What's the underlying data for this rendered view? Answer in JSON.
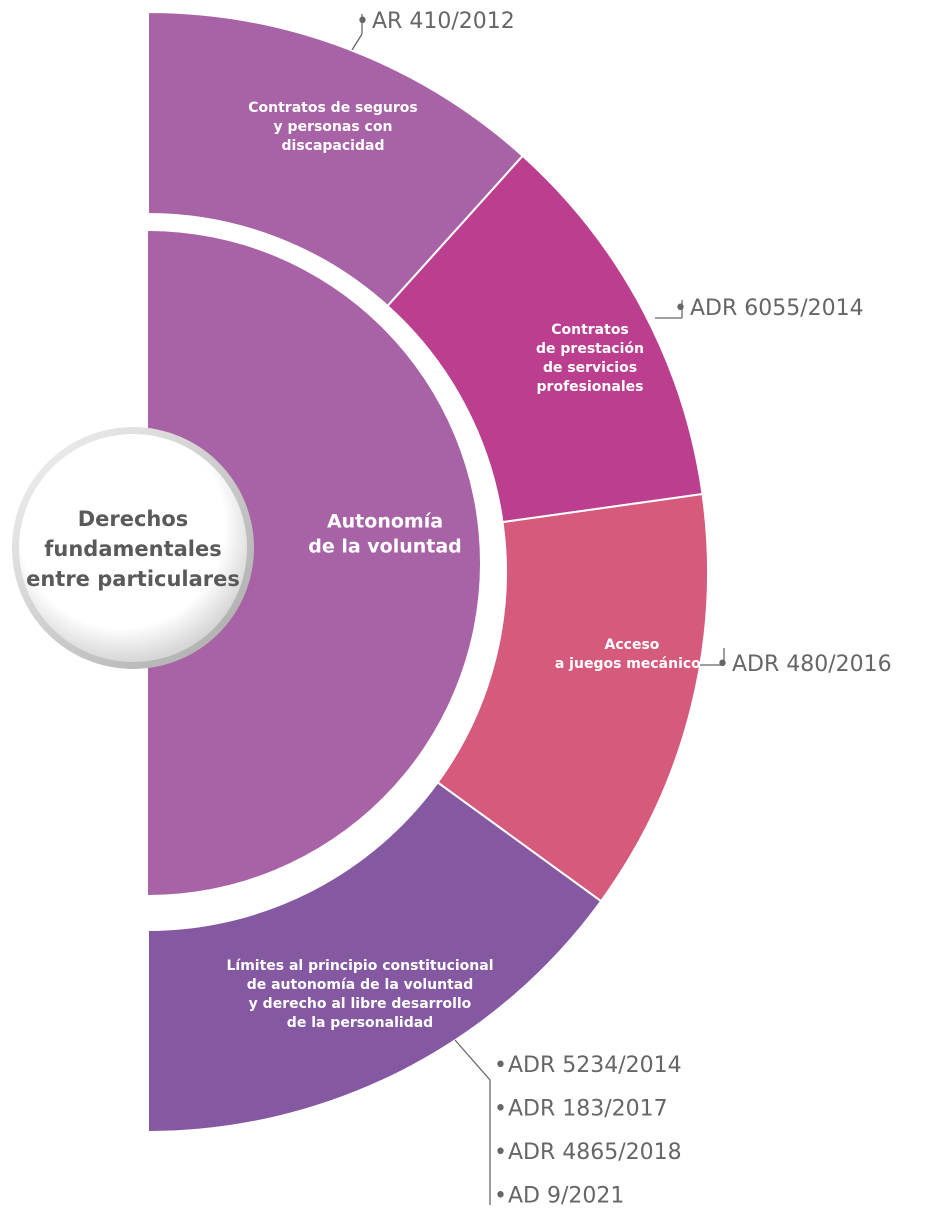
{
  "core": "Derechos fundamentales entre particulares",
  "core_lines": [
    "Derechos",
    "fundamentales",
    "entre particulares"
  ],
  "center_lines": [
    "Autonomía",
    "de la voluntad"
  ],
  "segments": [
    {
      "lines": [
        "Contratos de seguros",
        "y personas con",
        "discapacidad"
      ],
      "refs": [
        "AR 410/2012"
      ]
    },
    {
      "lines": [
        "Contratos",
        "de prestación",
        "de servicios",
        "profesionales"
      ],
      "refs": [
        "ADR 6055/2014"
      ]
    },
    {
      "lines": [
        "Acceso",
        "a juegos mecánicos"
      ],
      "refs": [
        "ADR 480/2016"
      ]
    },
    {
      "lines": [
        "Límites al principio constitucional",
        "de autonomía de la voluntad",
        "y derecho al libre desarrollo",
        "de la personalidad"
      ],
      "refs": [
        "ADR 5234/2014",
        "ADR 183/2017",
        "ADR 4865/2018",
        "AD 9/2021"
      ]
    }
  ]
}
